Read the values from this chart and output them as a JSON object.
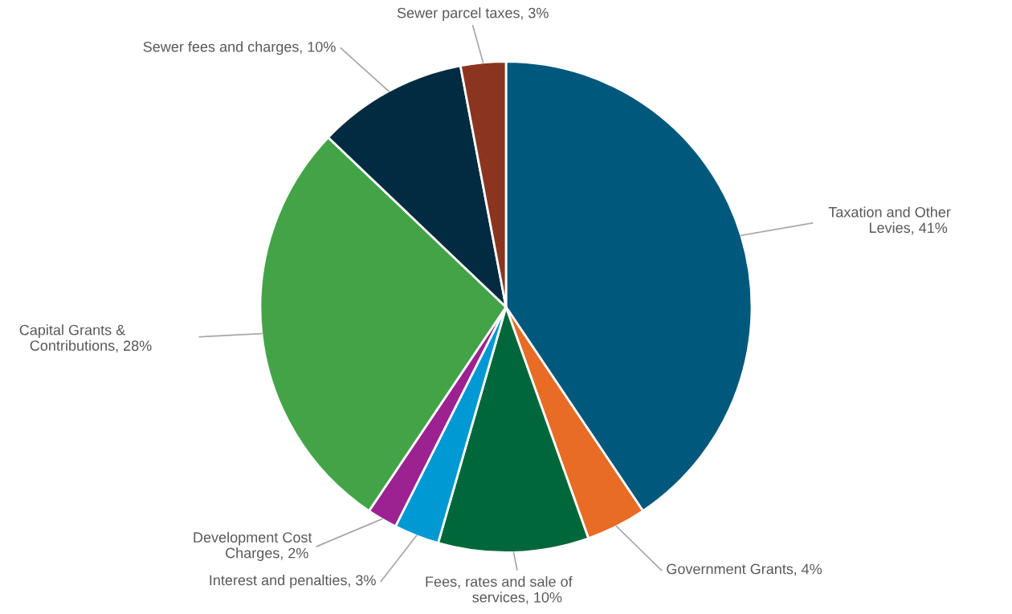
{
  "chart_data": {
    "type": "pie",
    "categories": [
      "Taxation and Other\nLevies",
      "Government Grants",
      "Fees, rates and sale of\nservices",
      "Interest and penalties",
      "Development Cost\nCharges",
      "Capital Grants &\nContributions",
      "Sewer fees and charges",
      "Sewer parcel taxes"
    ],
    "values": [
      41,
      4,
      10,
      3,
      2,
      28,
      10,
      3
    ],
    "colors": [
      "#00587c",
      "#e86c25",
      "#00673a",
      "#0099d4",
      "#9c2291",
      "#43a447",
      "#002b40",
      "#8b3520"
    ],
    "value_labels": [
      ", 41%",
      ", 4%",
      ", 10%",
      ", 3%",
      ", 2%",
      ", 28%",
      ", 10%",
      ", 3%"
    ]
  }
}
